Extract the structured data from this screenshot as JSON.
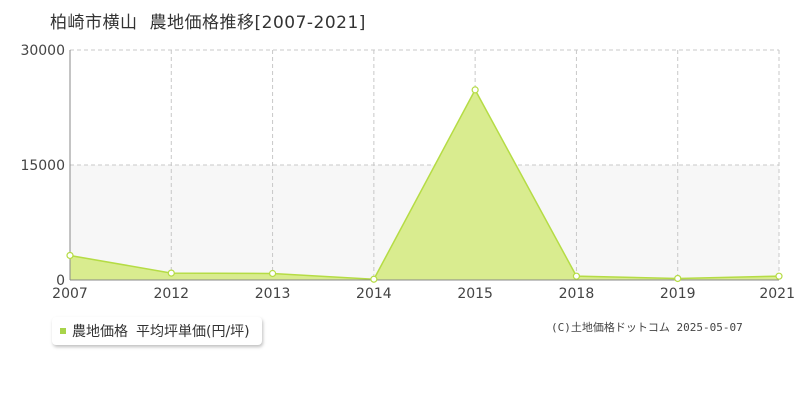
{
  "header": {
    "location": "柏崎市横山",
    "title": "農地価格推移[2007-2021]"
  },
  "legend": {
    "series_name": "農地価格",
    "unit_label": "平均坪単価(円/坪)"
  },
  "copyright": "(C)土地価格ドットコム 2025-05-07",
  "colors": {
    "fill": "#d9ec8f",
    "line": "#b5dc45",
    "marker_fill": "#ffffff",
    "grid": "#c8c8c8",
    "band": "#f7f7f7"
  },
  "chart_data": {
    "type": "area",
    "x": [
      "2007",
      "2012",
      "2013",
      "2014",
      "2015",
      "2018",
      "2019",
      "2021"
    ],
    "series": [
      {
        "name": "農地価格",
        "values": [
          3200,
          900,
          850,
          100,
          24800,
          500,
          200,
          500
        ]
      }
    ],
    "ylim": [
      0,
      30000
    ],
    "yticks": [
      "0",
      "15000",
      "30000"
    ],
    "grid": true
  }
}
